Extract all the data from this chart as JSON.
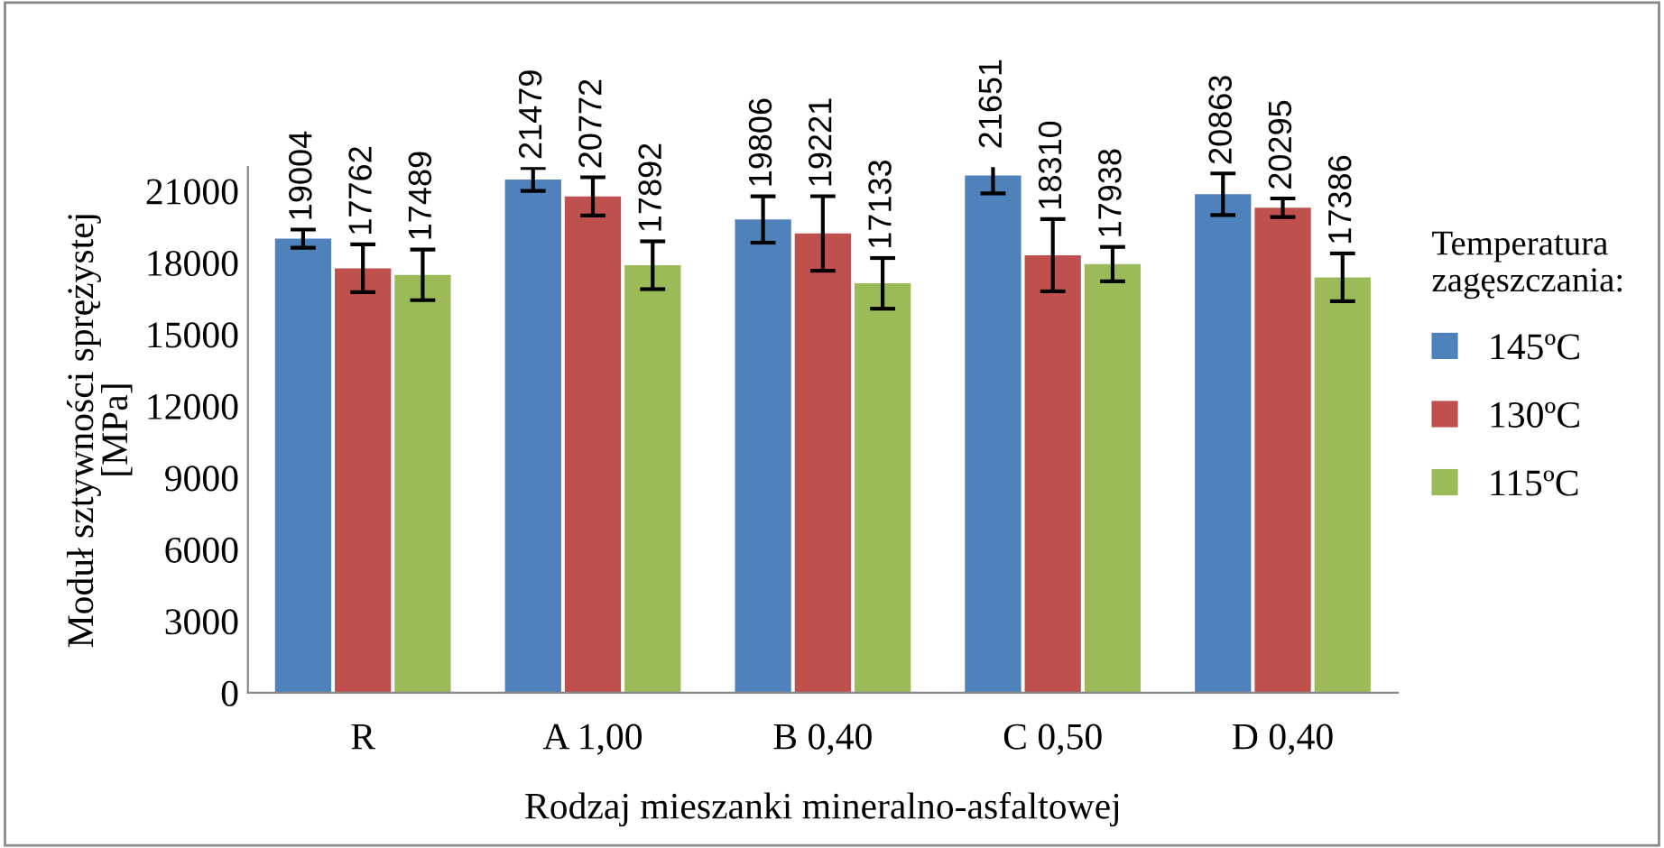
{
  "chart_data": {
    "type": "bar",
    "xlabel": "Rodzaj mieszanki mineralno-asfaltowej",
    "ylabel": "Moduł sztywności sprężystej\n[MPa]",
    "legend_title": "Temperatura\nzagęszczania:",
    "categories": [
      "R",
      "A 1,00",
      "B 0,40",
      "C 0,50",
      "D 0,40"
    ],
    "series": [
      {
        "name": "145ºC",
        "color": "#4f81bd",
        "values": [
          19004,
          21479,
          19806,
          21651,
          20863
        ],
        "errors": [
          380,
          480,
          970,
          750,
          870
        ]
      },
      {
        "name": "130ºC",
        "color": "#c0504d",
        "values": [
          17762,
          20772,
          19221,
          18310,
          20295
        ],
        "errors": [
          1000,
          800,
          1560,
          1510,
          390
        ]
      },
      {
        "name": "115ºC",
        "color": "#9bbb59",
        "values": [
          17489,
          17892,
          17133,
          17938,
          17386
        ],
        "errors": [
          1060,
          1000,
          1060,
          720,
          1000
        ]
      }
    ],
    "ylim": [
      0,
      22000
    ],
    "yticks": [
      0,
      3000,
      6000,
      9000,
      12000,
      15000,
      18000,
      21000
    ],
    "data_labels": true,
    "legend": "right",
    "grid": false
  }
}
